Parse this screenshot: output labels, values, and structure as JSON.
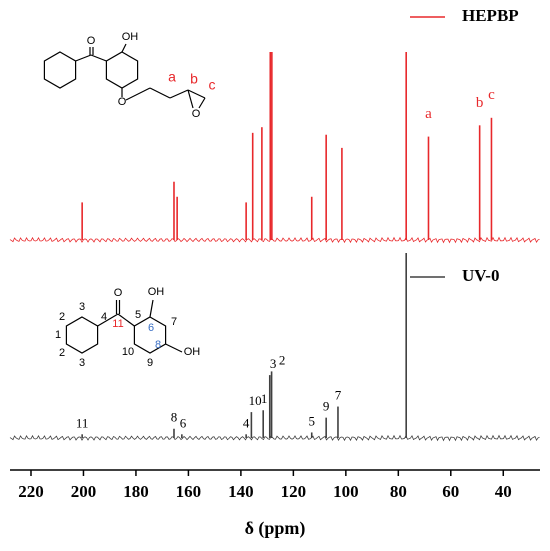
{
  "chart_data": {
    "type": "line",
    "x_label": "δ (ppm)",
    "xlim": [
      228,
      26
    ],
    "xticks": [
      220,
      200,
      180,
      160,
      140,
      120,
      100,
      80,
      60,
      40
    ],
    "series": [
      {
        "name": "HEPBP",
        "color": "#e8282b",
        "x": [
          200.5,
          165.5,
          164.3,
          138,
          135.5,
          132,
          128.8,
          128.2,
          113,
          107.5,
          101.5,
          77,
          68.5,
          49,
          44.5
        ],
        "values": [
          20,
          31,
          23,
          20,
          57,
          60,
          100,
          100,
          23,
          56,
          49,
          100,
          55,
          61,
          65
        ],
        "peak_labels": [
          null,
          null,
          null,
          null,
          null,
          null,
          null,
          null,
          null,
          null,
          null,
          null,
          "a",
          "b",
          "c"
        ]
      },
      {
        "name": "UV-0",
        "color": "#404040",
        "x": [
          200.5,
          165.5,
          162.5,
          138,
          136,
          131.5,
          129,
          128.3,
          113,
          107.5,
          103,
          77
        ],
        "values": [
          2,
          5,
          2,
          2,
          14,
          15,
          34,
          36,
          3,
          11,
          17,
          100
        ],
        "peak_labels": [
          "11",
          "8",
          "6",
          "4",
          "10",
          "1",
          "3",
          "2",
          "5",
          "9",
          "7",
          null
        ]
      }
    ],
    "structures": [
      {
        "labels": [
          "O",
          "OH",
          "O",
          "a",
          "b",
          "c",
          "O"
        ]
      },
      {
        "labels": [
          "O",
          "OH",
          "OH",
          "11",
          "1",
          "2",
          "3",
          "4",
          "2",
          "3",
          "5",
          "6",
          "7",
          "8",
          "9",
          "10"
        ]
      }
    ]
  }
}
